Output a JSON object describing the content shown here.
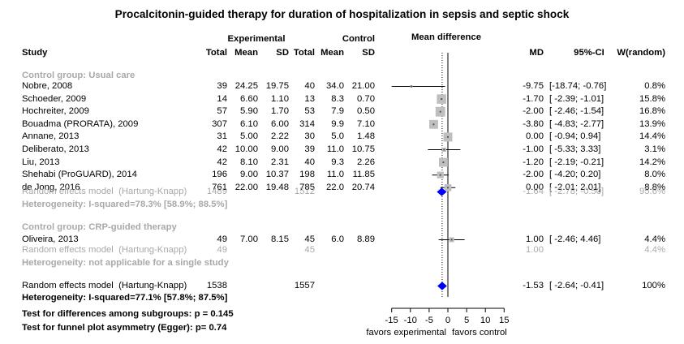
{
  "chart_data": {
    "type": "forest",
    "title": "Procalcitonin-guided therapy for duration of hospitalization in sepsis and septic shock",
    "headers": {
      "experimental": "Experimental",
      "control": "Control",
      "mean_difference": "Mean difference",
      "study": "Study",
      "total": "Total",
      "mean": "Mean",
      "sd": "SD",
      "md": "MD",
      "ci": "95%-CI",
      "weight": "W(random)"
    },
    "subgroups": [
      {
        "label": "Control group: Usual care",
        "studies": [
          {
            "study": "Nobre, 2008",
            "e_total": "39",
            "e_mean": "24.25",
            "e_sd": "19.75",
            "c_total": "40",
            "c_mean": "34.0",
            "c_sd": "21.00",
            "md_text": "-9.75",
            "ci_text": "[-18.74; -0.76]",
            "w_text": "0.8%",
            "md": -9.75,
            "lo": -18.74,
            "hi": -0.76,
            "w": 0.8
          },
          {
            "study": "Schoeder, 2009",
            "e_total": "14",
            "e_mean": "6.60",
            "e_sd": "1.10",
            "c_total": "13",
            "c_mean": "8.3",
            "c_sd": "0.70",
            "md_text": "-1.70",
            "ci_text": "[ -2.39; -1.01]",
            "w_text": "15.8%",
            "md": -1.7,
            "lo": -2.39,
            "hi": -1.01,
            "w": 15.8
          },
          {
            "study": "Hochreiter, 2009",
            "e_total": "57",
            "e_mean": "5.90",
            "e_sd": "1.70",
            "c_total": "53",
            "c_mean": "7.9",
            "c_sd": "0.50",
            "md_text": "-2.00",
            "ci_text": "[ -2.46; -1.54]",
            "w_text": "16.8%",
            "md": -2.0,
            "lo": -2.46,
            "hi": -1.54,
            "w": 16.8
          },
          {
            "study": "Bouadma (PRORATA), 2009",
            "e_total": "307",
            "e_mean": "6.10",
            "e_sd": "6.00",
            "c_total": "314",
            "c_mean": "9.9",
            "c_sd": "7.10",
            "md_text": "-3.80",
            "ci_text": "[ -4.83; -2.77]",
            "w_text": "13.9%",
            "md": -3.8,
            "lo": -4.83,
            "hi": -2.77,
            "w": 13.9
          },
          {
            "study": "Annane, 2013",
            "e_total": "31",
            "e_mean": "5.00",
            "e_sd": "2.22",
            "c_total": "30",
            "c_mean": "5.0",
            "c_sd": "1.48",
            "md_text": "0.00",
            "ci_text": "[ -0.94; 0.94]",
            "w_text": "14.4%",
            "md": 0.0,
            "lo": -0.94,
            "hi": 0.94,
            "w": 14.4
          },
          {
            "study": "Deliberato, 2013",
            "e_total": "42",
            "e_mean": "10.00",
            "e_sd": "9.00",
            "c_total": "39",
            "c_mean": "11.0",
            "c_sd": "10.75",
            "md_text": "-1.00",
            "ci_text": "[ -5.33; 3.33]",
            "w_text": "3.1%",
            "md": -1.0,
            "lo": -5.33,
            "hi": 3.33,
            "w": 3.1
          },
          {
            "study": "Liu, 2013",
            "e_total": "42",
            "e_mean": "8.10",
            "e_sd": "2.31",
            "c_total": "40",
            "c_mean": "9.3",
            "c_sd": "2.26",
            "md_text": "-1.20",
            "ci_text": "[ -2.19; -0.21]",
            "w_text": "14.2%",
            "md": -1.2,
            "lo": -2.19,
            "hi": -0.21,
            "w": 14.2
          },
          {
            "study": "Shehabi (ProGUARD), 2014",
            "e_total": "196",
            "e_mean": "9.00",
            "e_sd": "10.37",
            "c_total": "198",
            "c_mean": "11.0",
            "c_sd": "11.85",
            "md_text": "-2.00",
            "ci_text": "[ -4.20; 0.20]",
            "w_text": "8.0%",
            "md": -2.0,
            "lo": -4.2,
            "hi": 0.2,
            "w": 8.0
          },
          {
            "study": "de Jong, 2016",
            "e_total": "761",
            "e_mean": "22.00",
            "e_sd": "19.48",
            "c_total": "785",
            "c_mean": "22.0",
            "c_sd": "20.74",
            "md_text": "0.00",
            "ci_text": "[ -2.01; 2.01]",
            "w_text": "8.8%",
            "md": 0.0,
            "lo": -2.01,
            "hi": 2.01,
            "w": 8.8
          }
        ],
        "model": {
          "label": "Random effects model  (Hartung-Knapp)",
          "e_total": "1489",
          "c_total": "1512",
          "md_text": "-1.64",
          "ci_text": "[ -2.78; -0.50]",
          "w_text": "95.6%",
          "md": -1.64,
          "lo": -2.78,
          "hi": -0.5
        },
        "heterogeneity": "Heterogeneity: I-squared=78.3% [58.9%; 88.5%]"
      },
      {
        "label": "Control group: CRP-guided therapy",
        "studies": [
          {
            "study": "Oliveira, 2013",
            "e_total": "49",
            "e_mean": "7.00",
            "e_sd": "8.15",
            "c_total": "45",
            "c_mean": "6.0",
            "c_sd": "8.89",
            "md_text": "1.00",
            "ci_text": "[ -2.46; 4.46]",
            "w_text": "4.4%",
            "md": 1.0,
            "lo": -2.46,
            "hi": 4.46,
            "w": 4.4
          }
        ],
        "model": {
          "label": "Random effects model  (Hartung-Knapp)",
          "e_total": "49",
          "c_total": "45",
          "md_text": "1.00",
          "ci_text": "",
          "w_text": "4.4%",
          "md": 1.0,
          "lo": 1.0,
          "hi": 1.0
        },
        "heterogeneity": "Heterogeneity: not applicable for a single study"
      }
    ],
    "overall": {
      "label": "Random effects model  (Hartung-Knapp)",
      "e_total": "1538",
      "c_total": "1557",
      "md_text": "-1.53",
      "ci_text": "[ -2.64; -0.41]",
      "w_text": "100%",
      "md": -1.53,
      "lo": -2.64,
      "hi": -0.41
    },
    "overall_heterogeneity": "Heterogeneity: I-squared=77.1% [57.8%; 87.5%]",
    "tests": [
      "Test for differences among subgroups: p = 0.145",
      "Test for funnel plot asymmetry (Egger): p= 0.74"
    ],
    "x_axis": {
      "ticks": [
        -15,
        -10,
        -5,
        0,
        5,
        10,
        15
      ],
      "tick_labels": [
        "-15",
        "-10",
        "-5",
        "0",
        "5",
        "10",
        "15"
      ],
      "range": [
        -15,
        15
      ],
      "label_left": "favors experimental",
      "label_right": "favors control"
    },
    "colors": {
      "square": "#bfbfbf",
      "diamond": "#0000ff",
      "grey_text": "#a9a9a9",
      "line": "#000000"
    }
  }
}
